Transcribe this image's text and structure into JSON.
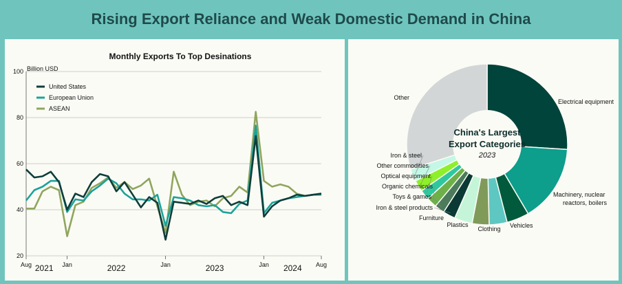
{
  "page": {
    "title": "Rising Export Reliance and Weak Domestic Demand in China"
  },
  "chart_data": [
    {
      "type": "line",
      "title": "Monthly Exports To Top Desinations",
      "ylabel": "Billion USD",
      "xlabel": "",
      "ylim": [
        20,
        100
      ],
      "yticks": [
        20,
        40,
        60,
        80,
        100
      ],
      "grid": true,
      "legend_position": "top-left",
      "x": [
        0,
        1,
        2,
        3,
        4,
        5,
        6,
        7,
        8,
        9,
        10,
        11,
        12,
        13,
        14,
        15,
        16,
        17,
        18,
        19,
        20,
        21,
        22,
        23,
        24,
        25,
        26,
        27,
        28,
        29,
        30,
        31,
        32,
        33,
        34,
        35,
        36
      ],
      "x_tick_labels": [
        {
          "x": 0,
          "label": "Aug"
        },
        {
          "x": 5,
          "label": "Jan"
        },
        {
          "x": 17,
          "label": "Jan"
        },
        {
          "x": 29,
          "label": "Jan"
        },
        {
          "x": 36,
          "label": "Aug"
        }
      ],
      "year_labels": [
        {
          "x": 2.2,
          "label": "2021"
        },
        {
          "x": 11,
          "label": "2022"
        },
        {
          "x": 23,
          "label": "2023"
        },
        {
          "x": 32.5,
          "label": "2024"
        }
      ],
      "series": [
        {
          "name": "United States",
          "color": "#0f3d3a",
          "values": [
            57.5,
            54,
            54.5,
            56.5,
            52,
            40,
            47,
            45.5,
            52,
            55.5,
            54.5,
            48,
            52,
            46.5,
            41,
            45.5,
            43,
            27,
            43.5,
            43,
            42.5,
            44,
            42.5,
            45,
            46,
            42,
            43.5,
            42,
            72,
            37,
            41.5,
            44,
            45,
            46.5,
            46,
            46.5,
            47
          ]
        },
        {
          "name": "European Union",
          "color": "#1aa39a",
          "values": [
            44,
            48.5,
            50,
            52.5,
            52.5,
            39,
            44.5,
            44,
            48,
            50.5,
            53.5,
            51.5,
            47,
            44.5,
            44.5,
            44,
            46.5,
            33,
            45.5,
            45,
            44,
            42,
            41.5,
            42,
            39,
            38.5,
            42.5,
            44,
            76.5,
            38.5,
            43,
            44,
            45,
            45.5,
            46,
            46.5,
            46.5
          ]
        },
        {
          "name": "ASEAN",
          "color": "#8fa55e",
          "values": [
            40.5,
            40.5,
            48,
            50,
            48.5,
            28.5,
            42,
            43.5,
            49.5,
            51.5,
            54,
            49.5,
            52,
            49,
            50.5,
            53.5,
            41.5,
            30,
            56.5,
            46.5,
            42,
            43.5,
            44,
            41.5,
            45,
            46,
            50,
            47.5,
            82.5,
            52.5,
            50,
            51,
            50,
            47,
            46,
            46.5,
            47
          ]
        }
      ]
    },
    {
      "type": "pie",
      "title": "China's Largest Export Categories",
      "subtitle": "2023",
      "slices": [
        {
          "label": "Electrical equipment",
          "value": 26.0,
          "color": "#00443b"
        },
        {
          "label": "Machinery, nuclear reactors, boilers",
          "value": 15.5,
          "color": "#0d9e8c"
        },
        {
          "label": "Vehicles",
          "value": 4.5,
          "color": "#025a3c"
        },
        {
          "label": "Clothing",
          "value": 3.6,
          "color": "#5ec7c1"
        },
        {
          "label": "Plastics",
          "value": 3.4,
          "color": "#809a5a"
        },
        {
          "label": "Furniture",
          "value": 3.6,
          "color": "#c5f5d8"
        },
        {
          "label": "Iron & steel products",
          "value": 2.5,
          "color": "#0b3a35"
        },
        {
          "label": "Toys & games",
          "value": 2.0,
          "color": "#4b7b5b"
        },
        {
          "label": "Organic chemicals",
          "value": 2.1,
          "color": "#6db04a"
        },
        {
          "label": "Optical equipment",
          "value": 2.0,
          "color": "#2fc89e"
        },
        {
          "label": "Other commodities",
          "value": 2.3,
          "color": "#8ef02a"
        },
        {
          "label": "Iron & steel",
          "value": 2.5,
          "color": "#c4f7e6"
        },
        {
          "label": "Other",
          "value": 30.0,
          "color": "#d2d6d6"
        }
      ]
    }
  ]
}
